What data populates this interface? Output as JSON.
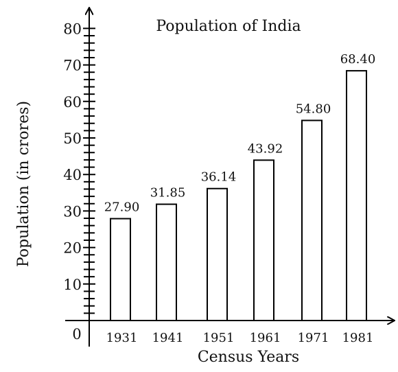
{
  "chart_data": {
    "type": "bar",
    "title": "Population of India",
    "xlabel": "Census Years",
    "ylabel": "Population (in crores)",
    "origin_label": "0",
    "categories": [
      "1931",
      "1941",
      "1951",
      "1961",
      "1971",
      "1981"
    ],
    "values": [
      27.9,
      31.85,
      36.14,
      43.92,
      54.8,
      68.4
    ],
    "data_labels": [
      "27.90",
      "31.85",
      "36.14",
      "43.92",
      "54.80",
      "68.40"
    ],
    "ylim": [
      0,
      80
    ],
    "yticks": [
      "10",
      "20",
      "30",
      "40",
      "50",
      "60",
      "70",
      "80"
    ],
    "minor_tick_step": 2,
    "grid": false,
    "bar_fill": "#ffffff",
    "bar_stroke": "#000000"
  }
}
